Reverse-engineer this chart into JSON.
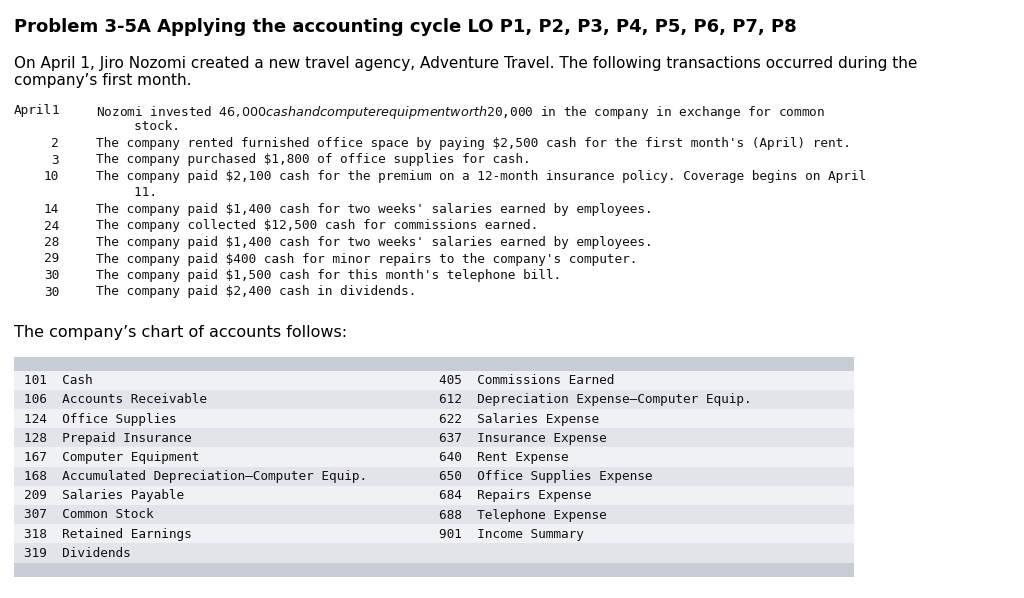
{
  "title": "Problem 3-5A Applying the accounting cycle LO P1, P2, P3, P4, P5, P6, P7, P8",
  "intro_line1": "On April 1, Jiro Nozomi created a new travel agency, Adventure Travel. The following transactions occurred during the",
  "intro_line2": "company’s first month.",
  "bg_color": "#ffffff",
  "table_header_color": "#c8ccd4",
  "table_row_colors": [
    "#f0f1f4",
    "#e2e4ea"
  ],
  "text_color": "#000000",
  "mono_color": "#111111",
  "chart_label": "The company’s chart of accounts follows:",
  "accounts_left": [
    "101  Cash",
    "106  Accounts Receivable",
    "124  Office Supplies",
    "128  Prepaid Insurance",
    "167  Computer Equipment",
    "168  Accumulated Depreciation–Computer Equip.",
    "209  Salaries Payable",
    "307  Common Stock",
    "318  Retained Earnings",
    "319  Dividends"
  ],
  "accounts_right": [
    "405  Commissions Earned",
    "612  Depreciation Expense–Computer Equip.",
    "622  Salaries Expense",
    "637  Insurance Expense",
    "640  Rent Expense",
    "650  Office Supplies Expense",
    "684  Repairs Expense",
    "688  Telephone Expense",
    "901  Income Summary",
    ""
  ]
}
